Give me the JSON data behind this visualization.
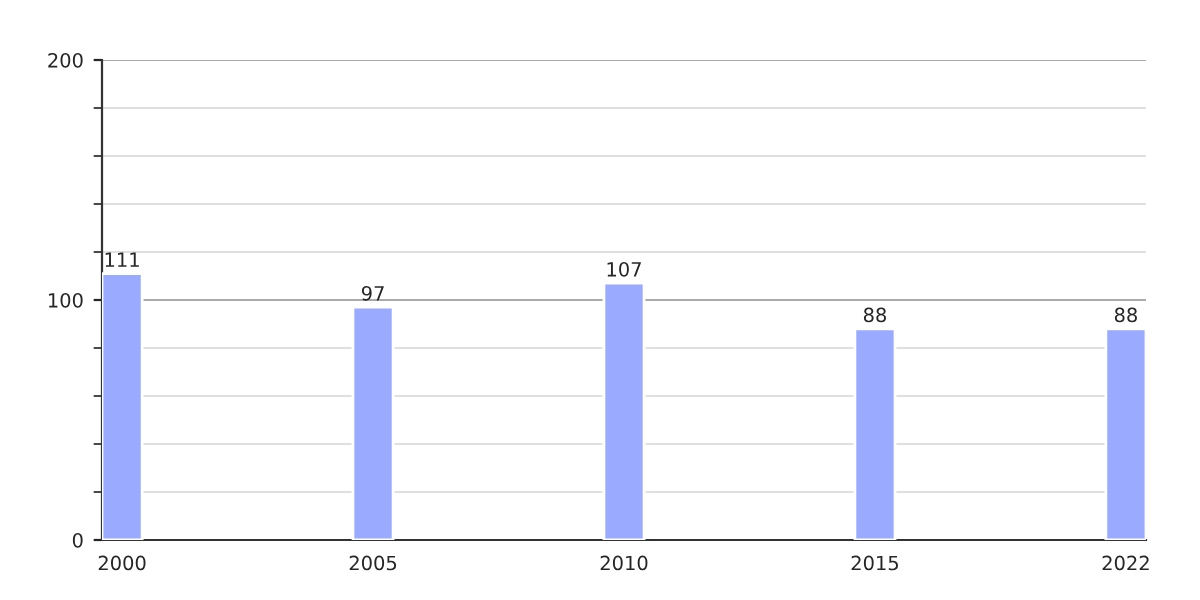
{
  "chart_data": {
    "type": "bar",
    "categories": [
      "2000",
      "2005",
      "2010",
      "2015",
      "2022"
    ],
    "values": [
      111,
      97,
      107,
      88,
      88
    ],
    "color": "#99aaff",
    "ylim": [
      0,
      200
    ],
    "yticks": [
      0,
      100,
      200
    ],
    "grid": "y",
    "data_labels": true,
    "legend": false
  }
}
